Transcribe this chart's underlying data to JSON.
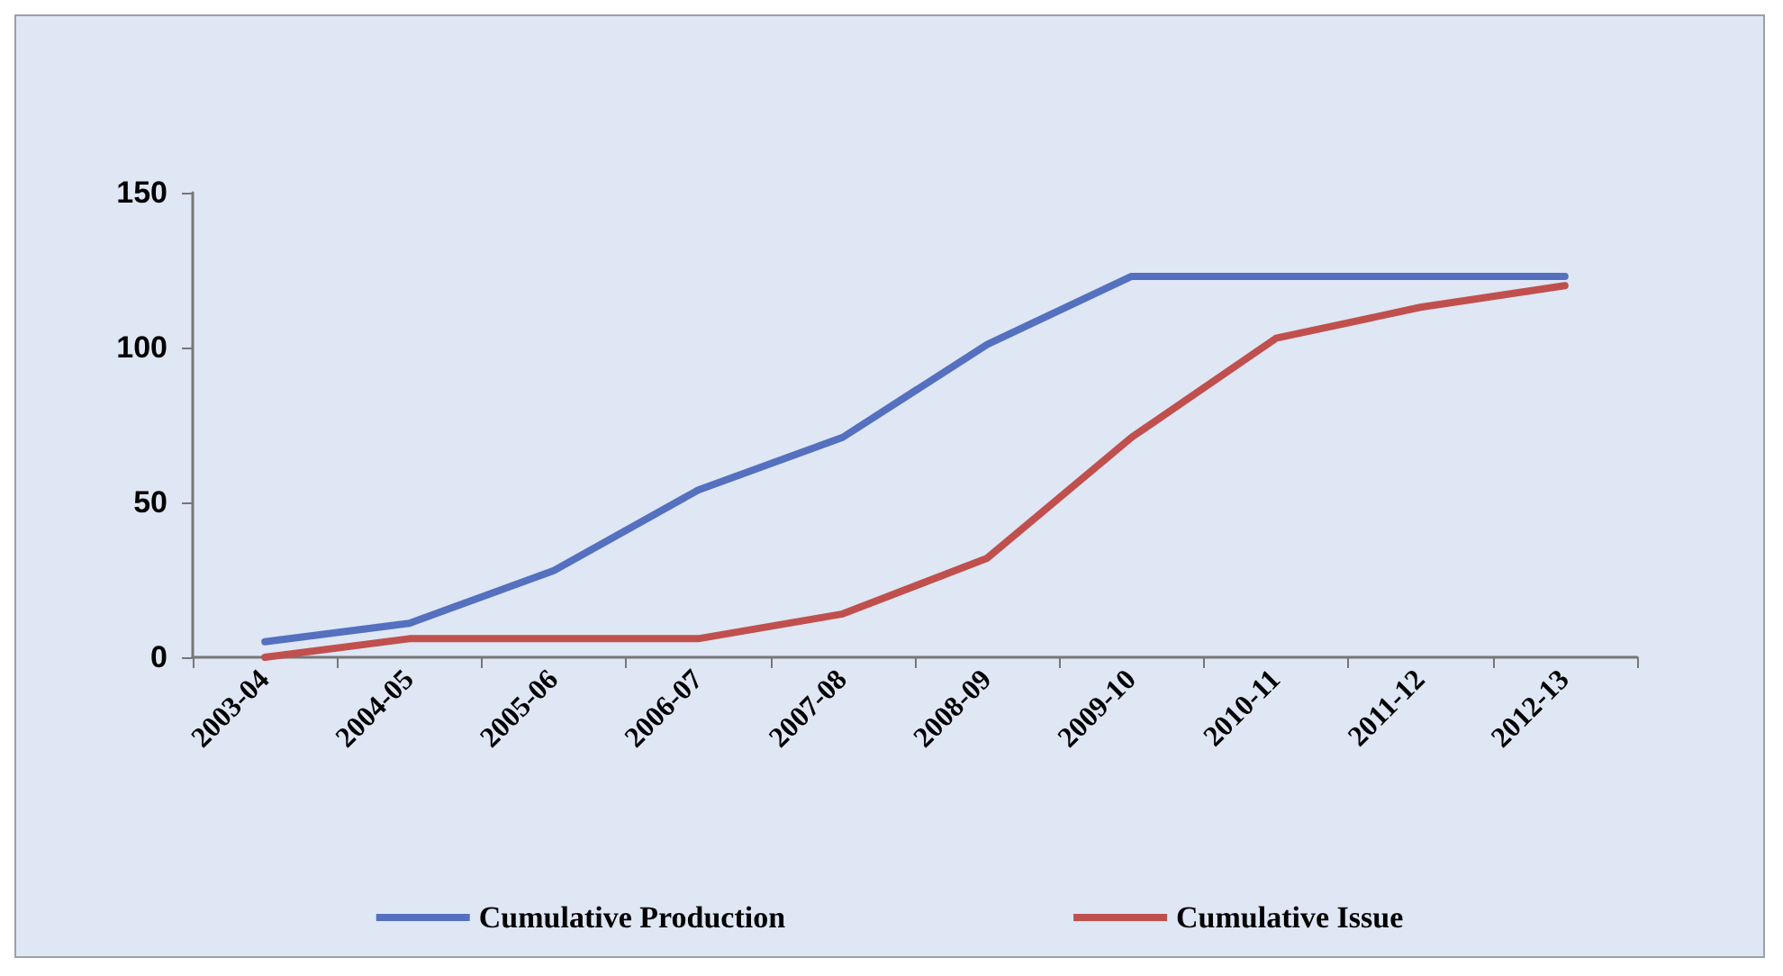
{
  "chart_data": {
    "type": "line",
    "categories": [
      "2003-04",
      "2004-05",
      "2005-06",
      "2006-07",
      "2007-08",
      "2008-09",
      "2009-10",
      "2010-11",
      "2011-12",
      "2012-13"
    ],
    "series": [
      {
        "name": "Cumulative Production",
        "color": "#5470bf",
        "values": [
          5,
          11,
          28,
          54,
          71,
          101,
          123,
          123,
          123,
          123
        ]
      },
      {
        "name": "Cumulative Issue",
        "color": "#c0504d",
        "values": [
          0,
          6,
          6,
          6,
          14,
          32,
          71,
          103,
          113,
          120
        ]
      }
    ],
    "ylim": [
      0,
      150
    ],
    "yticks": [
      0,
      50,
      100,
      150
    ],
    "grid": false,
    "legend": "bottom",
    "marker": "none",
    "line_style": "solid"
  }
}
